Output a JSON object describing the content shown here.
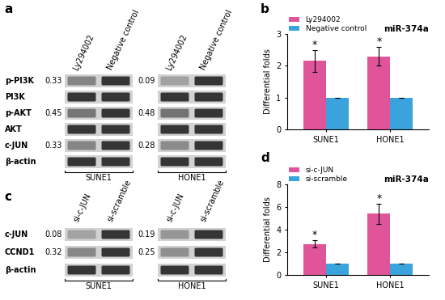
{
  "blots": [
    {
      "panel_label": "a",
      "lanes": [
        "Ly294002",
        "Negative control"
      ],
      "cell_lines": [
        "SUNE1",
        "HONE1"
      ],
      "rows": [
        {
          "name": "p-PI3K",
          "ratios": [
            0.33,
            0.09
          ]
        },
        {
          "name": "PI3K"
        },
        {
          "name": "p-AKT",
          "ratios": [
            0.45,
            0.48
          ]
        },
        {
          "name": "AKT"
        },
        {
          "name": "c-JUN",
          "ratios": [
            0.33,
            0.28
          ]
        },
        {
          "name": "β-actin"
        }
      ]
    },
    {
      "panel_label": "c",
      "lanes": [
        "si-c-JUN",
        "si-scramble"
      ],
      "cell_lines": [
        "SUNE1",
        "HONE1"
      ],
      "rows": [
        {
          "name": "c-JUN",
          "ratios": [
            0.08,
            0.19
          ]
        },
        {
          "name": "CCND1",
          "ratios": [
            0.32,
            0.25
          ]
        },
        {
          "name": "β-actin"
        }
      ]
    }
  ],
  "chart_data": [
    {
      "type": "bar",
      "panel_label": "b",
      "title": "miR-374a",
      "y_label": "Differential folds",
      "categories": [
        "SUNE1",
        "HONE1"
      ],
      "series": [
        {
          "name": "Ly294002",
          "color": "#e0559a",
          "values": [
            2.15,
            2.3
          ],
          "errors": [
            0.35,
            0.3
          ],
          "annotations": [
            "*",
            "*"
          ]
        },
        {
          "name": "Negative control",
          "color": "#3ba3dc",
          "values": [
            1,
            1
          ],
          "errors": [
            0,
            0
          ]
        }
      ],
      "ylim": [
        0,
        3
      ],
      "yticks": [
        0,
        1,
        2,
        3
      ]
    },
    {
      "type": "bar",
      "panel_label": "d",
      "title": "miR-374a",
      "y_label": "Differential folds",
      "categories": [
        "SUNE1",
        "HONE1"
      ],
      "series": [
        {
          "name": "si-c-JUN",
          "color": "#e0559a",
          "values": [
            2.75,
            5.4
          ],
          "errors": [
            0.3,
            0.9
          ],
          "annotations": [
            "*",
            "*"
          ]
        },
        {
          "name": "si-scramble",
          "color": "#3ba3dc",
          "values": [
            1,
            1
          ],
          "errors": [
            0,
            0
          ]
        }
      ],
      "ylim": [
        0,
        8
      ],
      "yticks": [
        0,
        2,
        4,
        6,
        8
      ]
    }
  ]
}
